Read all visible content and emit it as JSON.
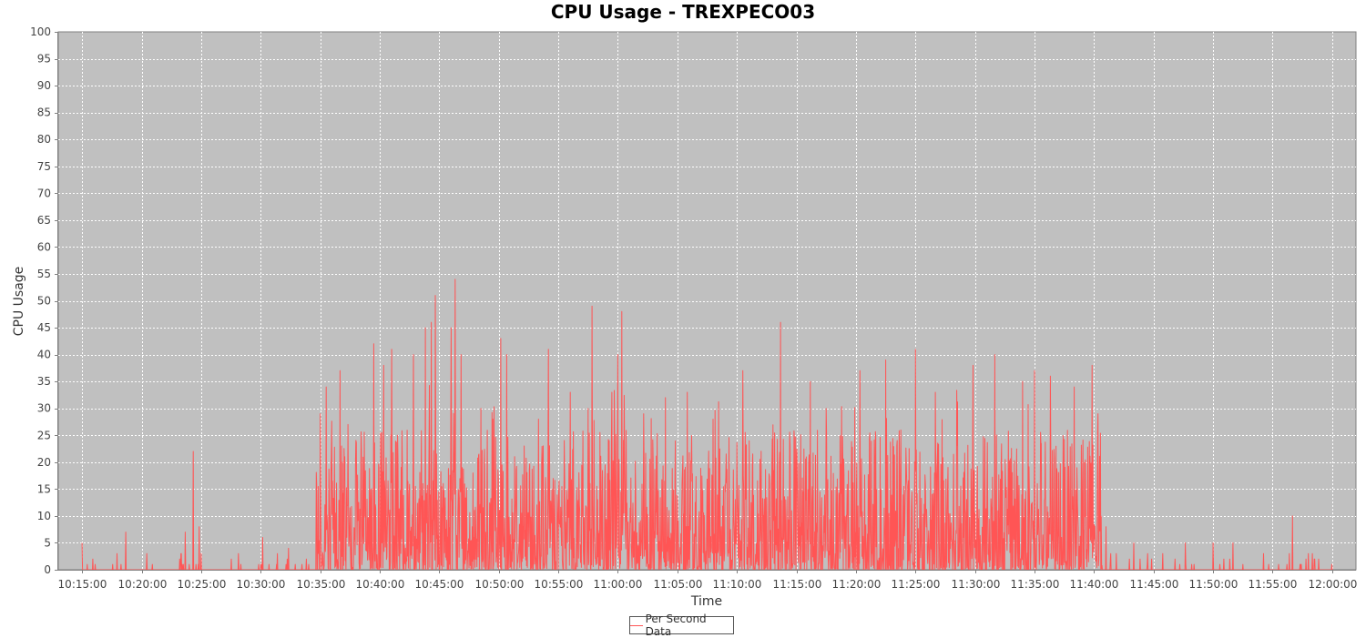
{
  "chart_data": {
    "type": "line",
    "title": "CPU Usage - TREXPECO03",
    "xlabel": "Time",
    "ylabel": "CPU Usage",
    "ylim": [
      0,
      100
    ],
    "y_ticks": [
      0,
      5,
      10,
      15,
      20,
      25,
      30,
      35,
      40,
      45,
      50,
      55,
      60,
      65,
      70,
      75,
      80,
      85,
      90,
      95,
      100
    ],
    "x_ticks": [
      "10:15:00",
      "10:20:00",
      "10:25:00",
      "10:30:00",
      "10:35:00",
      "10:40:00",
      "10:45:00",
      "10:50:00",
      "10:55:00",
      "11:00:00",
      "11:05:00",
      "11:10:00",
      "11:15:00",
      "11:20:00",
      "11:25:00",
      "11:30:00",
      "11:35:00",
      "11:40:00",
      "11:45:00",
      "11:50:00",
      "11:55:00",
      "12:00:00"
    ],
    "xlim": [
      "10:13:00",
      "12:02:00"
    ],
    "grid": true,
    "legend_position": "bottom-center",
    "series": [
      {
        "name": "Per Second Data",
        "color": "#ff5555",
        "resolution": "per second",
        "peaks": [
          {
            "time": "10:15:00",
            "value": 5
          },
          {
            "time": "10:18:40",
            "value": 7
          },
          {
            "time": "10:23:40",
            "value": 7
          },
          {
            "time": "10:24:20",
            "value": 22
          },
          {
            "time": "10:24:50",
            "value": 8
          },
          {
            "time": "10:30:10",
            "value": 6
          },
          {
            "time": "10:32:20",
            "value": 4
          },
          {
            "time": "10:35:00",
            "value": 29
          },
          {
            "time": "10:35:30",
            "value": 34
          },
          {
            "time": "10:36:40",
            "value": 37
          },
          {
            "time": "10:37:20",
            "value": 27
          },
          {
            "time": "10:39:30",
            "value": 42
          },
          {
            "time": "10:40:20",
            "value": 38
          },
          {
            "time": "10:41:00",
            "value": 41
          },
          {
            "time": "10:42:50",
            "value": 40
          },
          {
            "time": "10:43:50",
            "value": 45
          },
          {
            "time": "10:44:20",
            "value": 46
          },
          {
            "time": "10:44:40",
            "value": 51
          },
          {
            "time": "10:46:00",
            "value": 45
          },
          {
            "time": "10:46:20",
            "value": 54
          },
          {
            "time": "10:46:50",
            "value": 40
          },
          {
            "time": "10:48:30",
            "value": 30
          },
          {
            "time": "10:49:30",
            "value": 28
          },
          {
            "time": "10:50:10",
            "value": 43
          },
          {
            "time": "10:50:40",
            "value": 40
          },
          {
            "time": "10:53:20",
            "value": 28
          },
          {
            "time": "10:54:10",
            "value": 41
          },
          {
            "time": "10:56:00",
            "value": 33
          },
          {
            "time": "10:57:30",
            "value": 30
          },
          {
            "time": "10:57:50",
            "value": 49
          },
          {
            "time": "10:59:30",
            "value": 33
          },
          {
            "time": "11:00:00",
            "value": 40
          },
          {
            "time": "11:00:20",
            "value": 48
          },
          {
            "time": "11:02:10",
            "value": 29
          },
          {
            "time": "11:04:00",
            "value": 32
          },
          {
            "time": "11:05:50",
            "value": 33
          },
          {
            "time": "11:08:00",
            "value": 28
          },
          {
            "time": "11:10:30",
            "value": 37
          },
          {
            "time": "11:13:40",
            "value": 46
          },
          {
            "time": "11:16:10",
            "value": 35
          },
          {
            "time": "11:17:30",
            "value": 30
          },
          {
            "time": "11:20:20",
            "value": 37
          },
          {
            "time": "11:22:30",
            "value": 39
          },
          {
            "time": "11:25:00",
            "value": 41
          },
          {
            "time": "11:26:40",
            "value": 33
          },
          {
            "time": "11:29:50",
            "value": 38
          },
          {
            "time": "11:31:40",
            "value": 40
          },
          {
            "time": "11:34:00",
            "value": 35
          },
          {
            "time": "11:35:00",
            "value": 37
          },
          {
            "time": "11:36:20",
            "value": 36
          },
          {
            "time": "11:38:20",
            "value": 34
          },
          {
            "time": "11:39:50",
            "value": 38
          },
          {
            "time": "11:40:20",
            "value": 29
          },
          {
            "time": "11:41:00",
            "value": 8
          },
          {
            "time": "11:43:20",
            "value": 5
          },
          {
            "time": "11:47:40",
            "value": 5
          },
          {
            "time": "11:50:00",
            "value": 5
          },
          {
            "time": "11:51:40",
            "value": 5
          },
          {
            "time": "11:56:40",
            "value": 10
          },
          {
            "time": "11:58:20",
            "value": 3
          },
          {
            "time": "12:00:00",
            "value": 0
          }
        ]
      }
    ]
  }
}
